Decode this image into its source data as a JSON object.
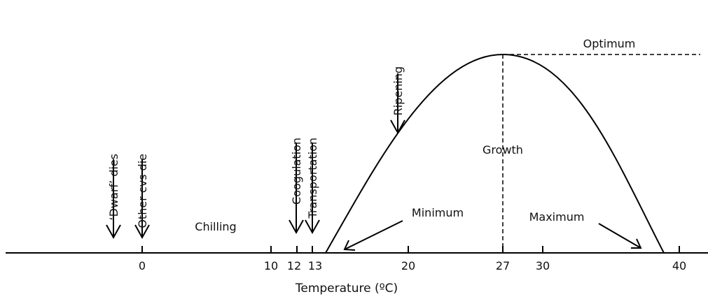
{
  "axis": {
    "title": "Temperature (ºC)",
    "ticks": [
      "0",
      "10",
      "12",
      "13",
      "20",
      "27",
      "30",
      "40"
    ]
  },
  "labels": {
    "dwarf": "‘Dwarf’ dies",
    "other": "Other cvs die",
    "coogulation": "Coogulation",
    "transportation": "Transportation",
    "ripening": "Ripening",
    "chilling": "Chilling",
    "minimum": "Minimum",
    "maximum": "Maximum",
    "growth": "Growth",
    "optimum": "Optimum"
  }
}
